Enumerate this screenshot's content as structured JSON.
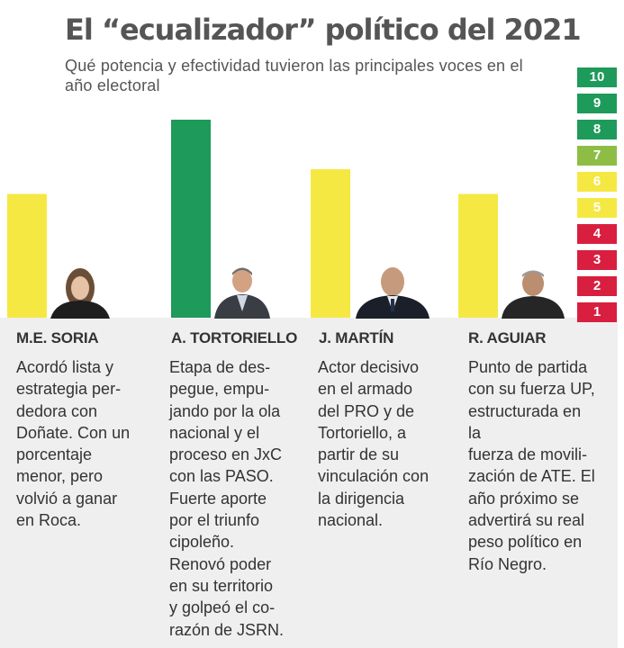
{
  "title": "El “ecualizador” político del 2021",
  "subtitle": "Qué potencia y efectividad tuvieron las principales voces en el año electoral",
  "colors": {
    "high": "#1e9a5a",
    "mid": "#8ebd46",
    "medium": "#f6e843",
    "low": "#d81f3f",
    "panel": "#efefef"
  },
  "scale": [
    {
      "label": "10",
      "level": "high"
    },
    {
      "label": "9",
      "level": "high"
    },
    {
      "label": "8",
      "level": "high"
    },
    {
      "label": "7",
      "level": "mid"
    },
    {
      "label": "6",
      "level": "medium"
    },
    {
      "label": "5",
      "level": "medium"
    },
    {
      "label": "4",
      "level": "low"
    },
    {
      "label": "3",
      "level": "low"
    },
    {
      "label": "2",
      "level": "low"
    },
    {
      "label": "1",
      "level": "low"
    }
  ],
  "people": [
    {
      "name": "M.E. SORIA",
      "desc": [
        "Acordó lista y",
        "estrategia per-",
        "dedora con",
        "Doñate. Con un",
        "porcentaje",
        "menor, pero",
        "volvió a ganar",
        "en Roca."
      ]
    },
    {
      "name": "A. TORTORIELLO",
      "desc": [
        "Etapa de des-",
        "pegue, empu-",
        "jando por la ola",
        "nacional y el",
        "proceso en JxC",
        "con las PASO.",
        "Fuerte aporte",
        "por el triunfo",
        "cipoleño.",
        "Renovó poder",
        "en su territorio",
        "y golpeó el co-",
        "razón de JSRN."
      ]
    },
    {
      "name": "J. MARTÍN",
      "desc": [
        "Actor decisivo",
        "en el armado",
        "del PRO y de",
        "Tortoriello, a",
        "partir de su",
        "vinculación con",
        "la dirigencia",
        "nacional."
      ]
    },
    {
      "name": "R. AGUIAR",
      "desc": [
        "Punto de partida",
        "con su fuerza UP,",
        "estructurada en",
        "la",
        "fuerza de movili-",
        "zación de ATE. El",
        "año próximo se",
        "advertirá su real",
        "peso político en",
        "Río Negro."
      ]
    }
  ],
  "chart_data": {
    "type": "bar",
    "title": "El “ecualizador” político del 2021",
    "subtitle": "Qué potencia y efectividad tuvieron las principales voces en el año electoral",
    "categories": [
      "M.E. SORIA",
      "A. TORTORIELLO",
      "J. MARTÍN",
      "R. AGUIAR"
    ],
    "values": [
      5,
      8,
      6,
      5
    ],
    "ylim": [
      0,
      10
    ],
    "xlabel": "",
    "ylabel": "",
    "legend": "right scale 1–10 (1–4 red, 5–6 yellow, 7 light green, 8–10 green)"
  }
}
